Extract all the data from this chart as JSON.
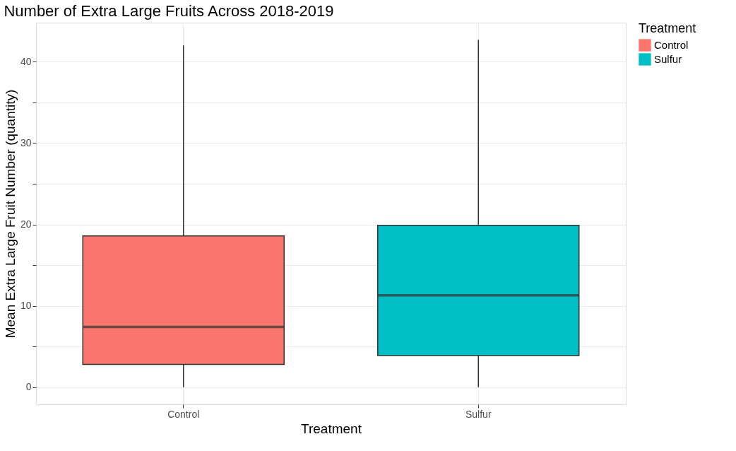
{
  "chart_data": {
    "type": "box",
    "title": "Number of Extra Large Fruits Across 2018-2019",
    "xlabel": "Treatment",
    "ylabel": "Mean Extra Large Fruit Number (quantity)",
    "legend_title": "Treatment",
    "categories": [
      "Control",
      "Sulfur"
    ],
    "series": [
      {
        "name": "Control",
        "color": "#f8766d",
        "boxes": [
          {
            "low": 0,
            "q1": 2.8,
            "median": 7.4,
            "q3": 18.6,
            "high": 42.0
          },
          null
        ]
      },
      {
        "name": "Sulfur",
        "color": "#00bfc4",
        "boxes": [
          null,
          {
            "low": 0,
            "q1": 3.9,
            "median": 11.3,
            "q3": 19.9,
            "high": 42.7
          }
        ]
      }
    ],
    "ylim": [
      -2.1,
      44.8
    ],
    "yticks": [
      0,
      {
        "value": 5,
        "label": null
      },
      10,
      {
        "value": 15,
        "label": null
      },
      20,
      {
        "value": 25,
        "label": null
      },
      30,
      {
        "value": 35,
        "label": null
      },
      40
    ],
    "grid": true,
    "legend": "right"
  }
}
